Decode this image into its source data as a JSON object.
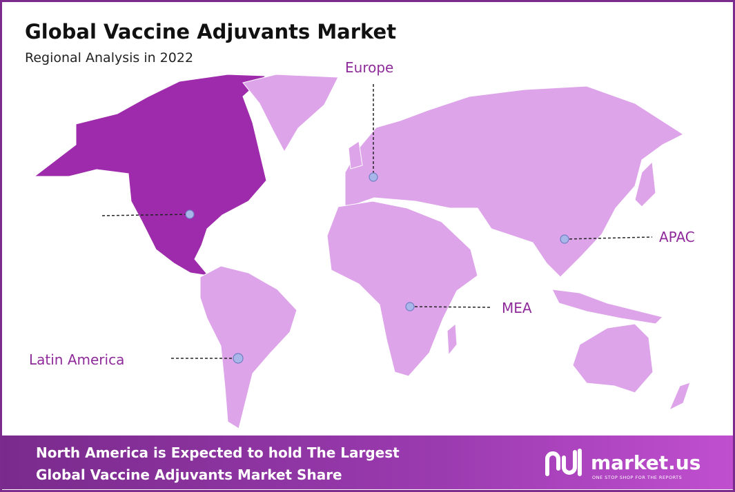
{
  "header": {
    "title": "Global Vaccine Adjuvants Market",
    "subtitle": "Regional Analysis in 2022"
  },
  "regions": [
    {
      "label": "Europe"
    },
    {
      "label": "APAC"
    },
    {
      "label": "MEA"
    },
    {
      "label": "Latin America"
    }
  ],
  "footer": {
    "lines": [
      "North America is Expected to hold The Largest",
      "Global Vaccine Adjuvants Market Share"
    ]
  },
  "brand": {
    "name": "market.us",
    "tagline": "ONE STOP SHOP FOR THE REPORTS"
  }
}
